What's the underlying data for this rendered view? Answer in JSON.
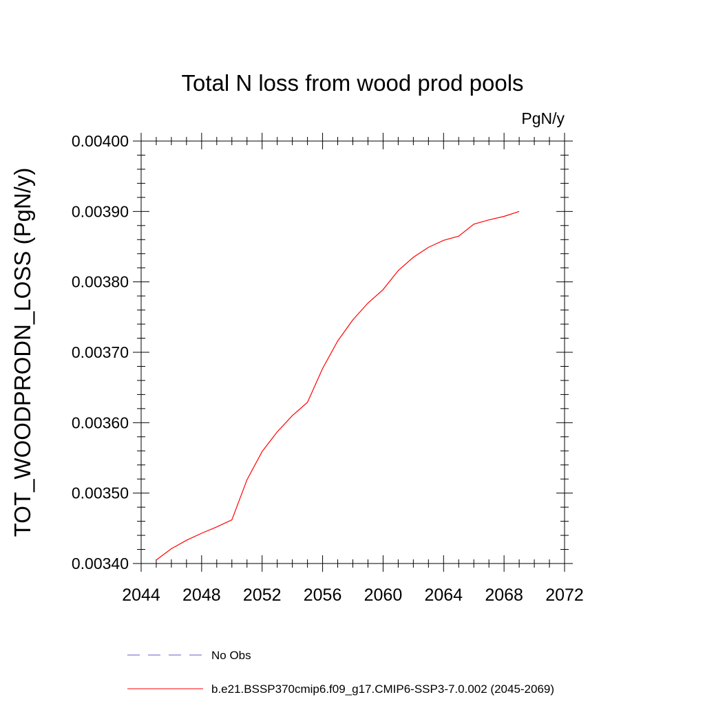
{
  "chart_data": {
    "type": "line",
    "title": "Total N loss from wood prod pools",
    "units_label": "PgN/y",
    "xlabel": "",
    "ylabel": "TOT_WOODPRODN_LOSS  (PgN/y)",
    "xlim": [
      2044,
      2072
    ],
    "ylim": [
      0.0034,
      0.004
    ],
    "x_ticks": [
      2044,
      2048,
      2052,
      2056,
      2060,
      2064,
      2068,
      2072
    ],
    "x_tick_labels": [
      "2044",
      "2048",
      "2052",
      "2056",
      "2060",
      "2064",
      "2068",
      "2072"
    ],
    "y_ticks": [
      0.0034,
      0.0035,
      0.0036,
      0.0037,
      0.0038,
      0.0039,
      0.004
    ],
    "y_tick_labels": [
      "0.00340",
      "0.00350",
      "0.00360",
      "0.00370",
      "0.00380",
      "0.00390",
      "0.00400"
    ],
    "grid": false,
    "legend_position": "bottom",
    "series": [
      {
        "name": "b.e21.BSSP370cmip6.f09_g17.CMIP6-SSP3-7.0.002 (2045-2069)",
        "color": "#ff0000",
        "style": "solid",
        "x": [
          2045,
          2046,
          2047,
          2048,
          2049,
          2050,
          2051,
          2052,
          2053,
          2054,
          2055,
          2056,
          2057,
          2058,
          2059,
          2060,
          2061,
          2062,
          2063,
          2064,
          2065,
          2066,
          2067,
          2068,
          2069
        ],
        "y": [
          0.003405,
          0.003421,
          0.003433,
          0.003443,
          0.003452,
          0.003462,
          0.003519,
          0.003559,
          0.003587,
          0.00361,
          0.003629,
          0.003677,
          0.003716,
          0.003746,
          0.00377,
          0.003789,
          0.003816,
          0.003835,
          0.003849,
          0.003859,
          0.003865,
          0.003882,
          0.003888,
          0.003893,
          0.0039
        ]
      }
    ],
    "legend": [
      {
        "label": "No Obs",
        "color": "#6a5acd",
        "style": "dashed"
      },
      {
        "label": "b.e21.BSSP370cmip6.f09_g17.CMIP6-SSP3-7.0.002 (2045-2069)",
        "color": "#ff0000",
        "style": "solid"
      }
    ]
  }
}
